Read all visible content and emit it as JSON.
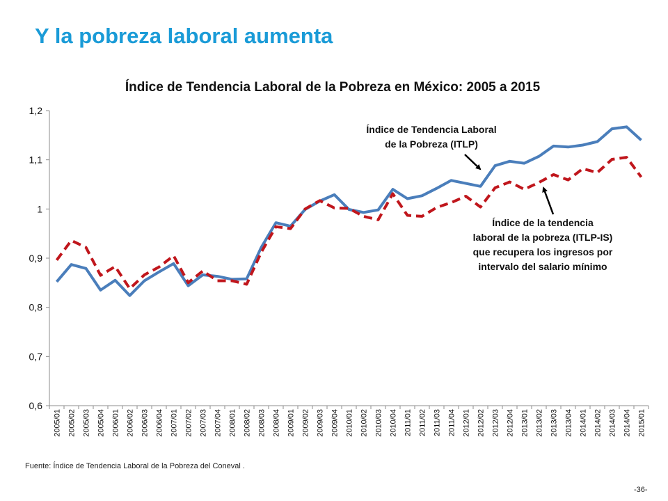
{
  "slide": {
    "title": "Y la pobreza laboral aumenta",
    "source": "Fuente: Índice de Tendencia Laboral de la Pobreza del Coneval .",
    "page_number": "-36-"
  },
  "chart_data": {
    "type": "line",
    "title": "Índice de Tendencia Laboral de la Pobreza en México: 2005 a 2015",
    "xlabel": "",
    "ylabel": "",
    "ylim": [
      0.6,
      1.2
    ],
    "yticks": [
      "0,6",
      "0,7",
      "0,8",
      "0,9",
      "1",
      "1,1",
      "1,2"
    ],
    "grid": false,
    "legend": "none",
    "categories": [
      "2005/01",
      "2005/02",
      "2005/03",
      "2005/04",
      "2006/01",
      "2006/02",
      "2006/03",
      "2006/04",
      "2007/01",
      "2007/02",
      "2007/03",
      "2007/04",
      "2008/01",
      "2008/02",
      "2008/03",
      "2008/04",
      "2009/01",
      "2009/02",
      "2009/03",
      "2009/04",
      "2010/01",
      "2010/02",
      "2010/03",
      "2010/04",
      "2011/01",
      "2011/02",
      "2011/03",
      "2011/04",
      "2012/01",
      "2012/02",
      "2012/03",
      "2012/04",
      "2013/01",
      "2013/02",
      "2013/03",
      "2013/04",
      "2014/01",
      "2014/02",
      "2014/03",
      "2014/04",
      "2015/01"
    ],
    "series": [
      {
        "name": "Índice de Tendencia Laboral de la Pobreza (ITLP)",
        "color": "#4a7ebb",
        "style": "solid",
        "values": [
          0.852,
          0.887,
          0.879,
          0.835,
          0.855,
          0.824,
          0.854,
          0.872,
          0.889,
          0.844,
          0.866,
          0.863,
          0.857,
          0.858,
          0.922,
          0.972,
          0.965,
          0.999,
          1.016,
          1.029,
          0.999,
          0.993,
          0.998,
          1.04,
          1.021,
          1.027,
          1.042,
          1.058,
          1.052,
          1.046,
          1.088,
          1.097,
          1.093,
          1.107,
          1.128,
          1.126,
          1.13,
          1.137,
          1.163,
          1.167,
          1.14
        ]
      },
      {
        "name": "Índice de la tendencia laboral de la pobreza (ITLP-IS) que recupera los ingresos por intervalo del salario mínimo",
        "color": "#c0161c",
        "style": "dashed",
        "values": [
          0.896,
          0.936,
          0.922,
          0.865,
          0.883,
          0.838,
          0.866,
          0.882,
          0.905,
          0.85,
          0.874,
          0.854,
          0.854,
          0.847,
          0.912,
          0.964,
          0.96,
          1.0,
          1.017,
          1.002,
          1.001,
          0.985,
          0.978,
          1.031,
          0.987,
          0.985,
          1.003,
          1.013,
          1.026,
          1.004,
          1.043,
          1.055,
          1.04,
          1.054,
          1.07,
          1.059,
          1.082,
          1.074,
          1.101,
          1.105,
          1.065
        ]
      }
    ],
    "annotations": [
      {
        "lines": [
          "Índice de Tendencia Laboral",
          "de la Pobreza (ITLP)"
        ]
      },
      {
        "lines": [
          "Índice de la tendencia",
          "laboral de la pobreza (ITLP-IS)",
          "que recupera los ingresos por",
          "intervalo del salario mínimo"
        ]
      }
    ]
  }
}
